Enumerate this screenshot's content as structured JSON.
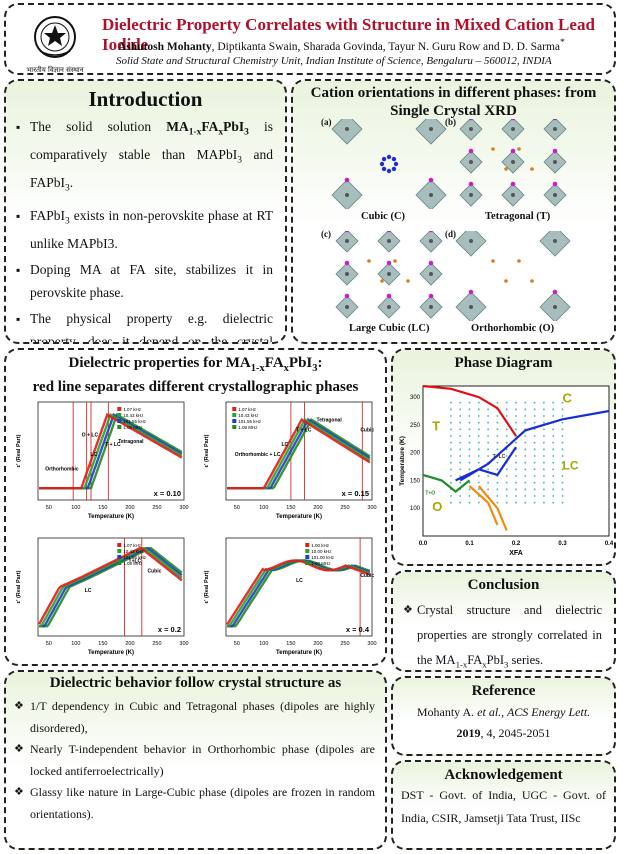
{
  "header": {
    "title": "Dielectric Property Correlates with Structure in Mixed Cation Lead Iodide",
    "author_main": "Ashutosh Mohanty",
    "authors_rest": ", Diptikanta Swain, Sharada Govinda, Tayur N. Guru Row and D. D. Sarma",
    "author_star": "*",
    "affiliation": "Solid State and Structural Chemistry Unit, Indian Institute of Science, Bengaluru – 560012, INDIA",
    "logo_text": "भारतीय विज्ञान संस्थान"
  },
  "intro": {
    "title": "Introduction",
    "b1_pre": "The solid solution ",
    "b1_formula": "MA1-xFAxPbI3",
    "b1_post": " is comparatively stable than MAPbI3 and FAPbI3.",
    "b2": "FAPbI3 exists in non-perovskite phase at RT unlike MAPbI3.",
    "b3": "Doping MA at FA site, stabilizes it in perovskite phase.",
    "b4": "The physical property e.g. dielectric property, does it depend on the crystal structure of the system?"
  },
  "cation": {
    "title": "Cation orientations in different phases: from Single Crystal XRD",
    "panels": [
      {
        "tag": "(a)",
        "label": "Cubic (C)"
      },
      {
        "tag": "(b)",
        "label": "Tetragonal (T)"
      },
      {
        "tag": "(c)",
        "label": "Large Cubic (LC)"
      },
      {
        "tag": "(d)",
        "label": "Orthorhombic (O)"
      }
    ]
  },
  "dielectric": {
    "title_line1": "Dielectric properties for MA1-xFAxPbI3:",
    "title_line2": "red line separates different crystallographic phases",
    "ylabel": "ε' (Real Part)",
    "xlabel": "Temperature (K)",
    "plots": [
      {
        "x_label": "x = 0.10",
        "legend": [
          "1.07 kHz",
          "10.43 kHz",
          "101.55 kHz",
          "1.08 MHz"
        ],
        "phases": [
          "Orthorhombic",
          "O + LC",
          "LC",
          "T + LC",
          "Tetragonal"
        ]
      },
      {
        "x_label": "x = 0.15",
        "legend": [
          "1.07 kHz",
          "10.43 kHz",
          "101.55 kHz",
          "1.08 MHz"
        ],
        "phases": [
          "Orthorhombic + LC",
          "LC",
          "T + LC",
          "Tetragonal",
          "Cubic"
        ]
      },
      {
        "x_label": "x = 0.2",
        "legend": [
          "1.07 kHz",
          "10.43 kHz",
          "101.55 kHz",
          "1.08 MHz"
        ],
        "phases": [
          "LC",
          "T+LC",
          "Cubic"
        ]
      },
      {
        "x_label": "x = 0.4",
        "legend": [
          "1.00 kHz",
          "10.00 kHz",
          "101.00 kHz",
          "1.00 MHz"
        ],
        "phases": [
          "LC",
          "Cubic"
        ]
      }
    ],
    "ticks_x": [
      "50",
      "100",
      "150",
      "200",
      "250",
      "300"
    ]
  },
  "phase_diagram": {
    "title": "Phase Diagram",
    "ylabel": "Temperature (K)",
    "xlabel": "XFA",
    "yticks": [
      "100",
      "150",
      "200",
      "250",
      "300"
    ],
    "xticks": [
      "0.0",
      "0.1",
      "0.2",
      "0.3",
      "0.4"
    ],
    "labels": {
      "C": "C",
      "T": "T",
      "LC": "LC",
      "O": "O",
      "TO": "T+O",
      "TLC": "T+LC"
    }
  },
  "behavior": {
    "title": "Dielectric behavior follow crystal structure as",
    "items": [
      "1/T dependency in Cubic and Tetragonal phases (dipoles are highly disordered),",
      "Nearly T-independent behavior in Orthorhombic phase (dipoles are locked antiferroelectrically)",
      "Glassy like nature in Large-Cubic phase (dipoles are frozen in random orientations)."
    ]
  },
  "conclusion": {
    "title": "Conclusion",
    "text_pre": "Crystal structure and dielectric properties are strongly correlated in the ",
    "formula": "MA1-xFAxPbI3",
    "text_post": " series."
  },
  "reference": {
    "title": "Reference",
    "line1_pre": "Mohanty A. ",
    "line1_etal": "et al.",
    "line1_journal": ", ACS Energy Lett.",
    "line2_year": "2019",
    "line2_rest": ", 4, 2045-2051"
  },
  "ack": {
    "title": "Acknowledgement",
    "text": "DST - Govt. of India, UGC - Govt. of India, CSIR, Jamsetji Tata Trust, IISc"
  },
  "colors": {
    "title_red": "#b0102a",
    "panel_green": "#e9f3dd",
    "phase_red": "#e01010",
    "phase_blue": "#1a2bd8",
    "phase_orange": "#f08a10",
    "phase_green": "#1e8c2a",
    "text_olive": "#a8a800"
  }
}
